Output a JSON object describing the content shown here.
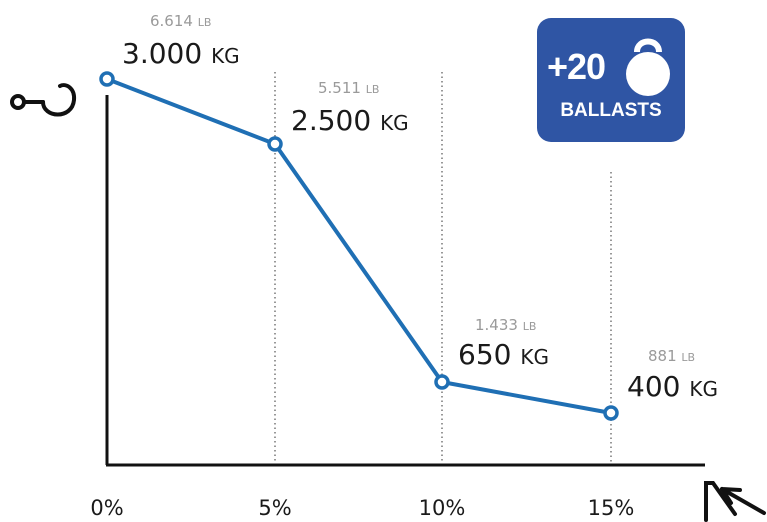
{
  "colors": {
    "line": "#1f6fb4",
    "badge": "#2f55a4",
    "axis": "#111111"
  },
  "badge": {
    "count": "+20",
    "label": "BALLASTS",
    "icon": "kettlebell-icon"
  },
  "y_axis_icon": "hook-icon",
  "x_axis_icon": "slope-arrow-icon",
  "chart_data": {
    "type": "line",
    "categories": [
      "0%",
      "5%",
      "10%",
      "15%"
    ],
    "values": [
      3000,
      2500,
      650,
      400
    ],
    "unit": "KG",
    "point_labels": [
      {
        "kg": "3.000",
        "kg_unit": "KG",
        "lb": "6.614",
        "lb_unit": "LB"
      },
      {
        "kg": "2.500",
        "kg_unit": "KG",
        "lb": "5.511",
        "lb_unit": "LB"
      },
      {
        "kg": "650",
        "kg_unit": "KG",
        "lb": "1.433",
        "lb_unit": "LB"
      },
      {
        "kg": "400",
        "kg_unit": "KG",
        "lb": "881",
        "lb_unit": "LB"
      }
    ],
    "grid": "vertical dotted at each category",
    "ylim": [
      0,
      3000
    ]
  }
}
